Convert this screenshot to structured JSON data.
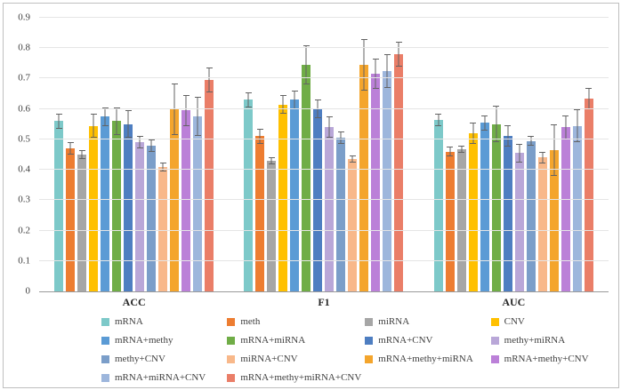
{
  "figure": {
    "background": "#ffffff",
    "border_color": "#bfbfbf",
    "error_bar_color": "#636363",
    "gridline_color": "#e5e5e5"
  },
  "chart_data": {
    "type": "bar",
    "title": "",
    "xlabel": "",
    "ylabel": "",
    "categories": [
      "ACC",
      "F1",
      "AUC"
    ],
    "ylim": [
      0,
      0.9
    ],
    "yticks": [
      0,
      0.1,
      0.2,
      0.3,
      0.4,
      0.5,
      0.6,
      0.7,
      0.8,
      0.9
    ],
    "grid": true,
    "error_bars": true,
    "legend_position": "bottom",
    "series": [
      {
        "name": "mRNA",
        "color": "#7DC9C9",
        "values": [
          0.56,
          0.63,
          0.565
        ],
        "errors": [
          0.025,
          0.025,
          0.02
        ]
      },
      {
        "name": "meth",
        "color": "#ED7D31",
        "values": [
          0.47,
          0.51,
          0.46
        ],
        "errors": [
          0.02,
          0.025,
          0.015
        ]
      },
      {
        "name": "miRNA",
        "color": "#A6A6A6",
        "values": [
          0.45,
          0.43,
          0.468
        ],
        "errors": [
          0.015,
          0.012,
          0.012
        ]
      },
      {
        "name": "CNV",
        "color": "#FFC000",
        "values": [
          0.545,
          0.615,
          0.52
        ],
        "errors": [
          0.04,
          0.03,
          0.035
        ]
      },
      {
        "name": "mRNA+methy",
        "color": "#5B9BD5",
        "values": [
          0.575,
          0.63,
          0.555
        ],
        "errors": [
          0.03,
          0.03,
          0.025
        ]
      },
      {
        "name": "mRNA+miRNA",
        "color": "#70AD47",
        "values": [
          0.56,
          0.745,
          0.55
        ],
        "errors": [
          0.045,
          0.065,
          0.06
        ]
      },
      {
        "name": "mRNA+CNV",
        "color": "#4E7EC1",
        "values": [
          0.55,
          0.6,
          0.512
        ],
        "errors": [
          0.045,
          0.03,
          0.035
        ]
      },
      {
        "name": "methy+miRNA",
        "color": "#B9A7D8",
        "values": [
          0.49,
          0.54,
          0.455
        ],
        "errors": [
          0.02,
          0.035,
          0.03
        ]
      },
      {
        "name": "methy+CNV",
        "color": "#7B9EC9",
        "values": [
          0.48,
          0.505,
          0.495
        ],
        "errors": [
          0.02,
          0.02,
          0.015
        ]
      },
      {
        "name": "miRNA+CNV",
        "color": "#F8B88A",
        "values": [
          0.41,
          0.435,
          0.44
        ],
        "errors": [
          0.015,
          0.012,
          0.02
        ]
      },
      {
        "name": "mRNA+methy+miRNA",
        "color": "#F4A52C",
        "values": [
          0.6,
          0.745,
          0.465
        ],
        "errors": [
          0.085,
          0.085,
          0.085
        ]
      },
      {
        "name": "mRNA+methy+CNV",
        "color": "#BB80D8",
        "values": [
          0.595,
          0.715,
          0.54
        ],
        "errors": [
          0.05,
          0.05,
          0.04
        ]
      },
      {
        "name": "mRNA+miRNA+CNV",
        "color": "#9DB6DC",
        "values": [
          0.575,
          0.725,
          0.545
        ],
        "errors": [
          0.065,
          0.055,
          0.055
        ]
      },
      {
        "name": "mRNA+methy+miRNA+CNV",
        "color": "#EA7E68",
        "values": [
          0.695,
          0.78,
          0.635
        ],
        "errors": [
          0.04,
          0.04,
          0.035
        ]
      }
    ]
  }
}
